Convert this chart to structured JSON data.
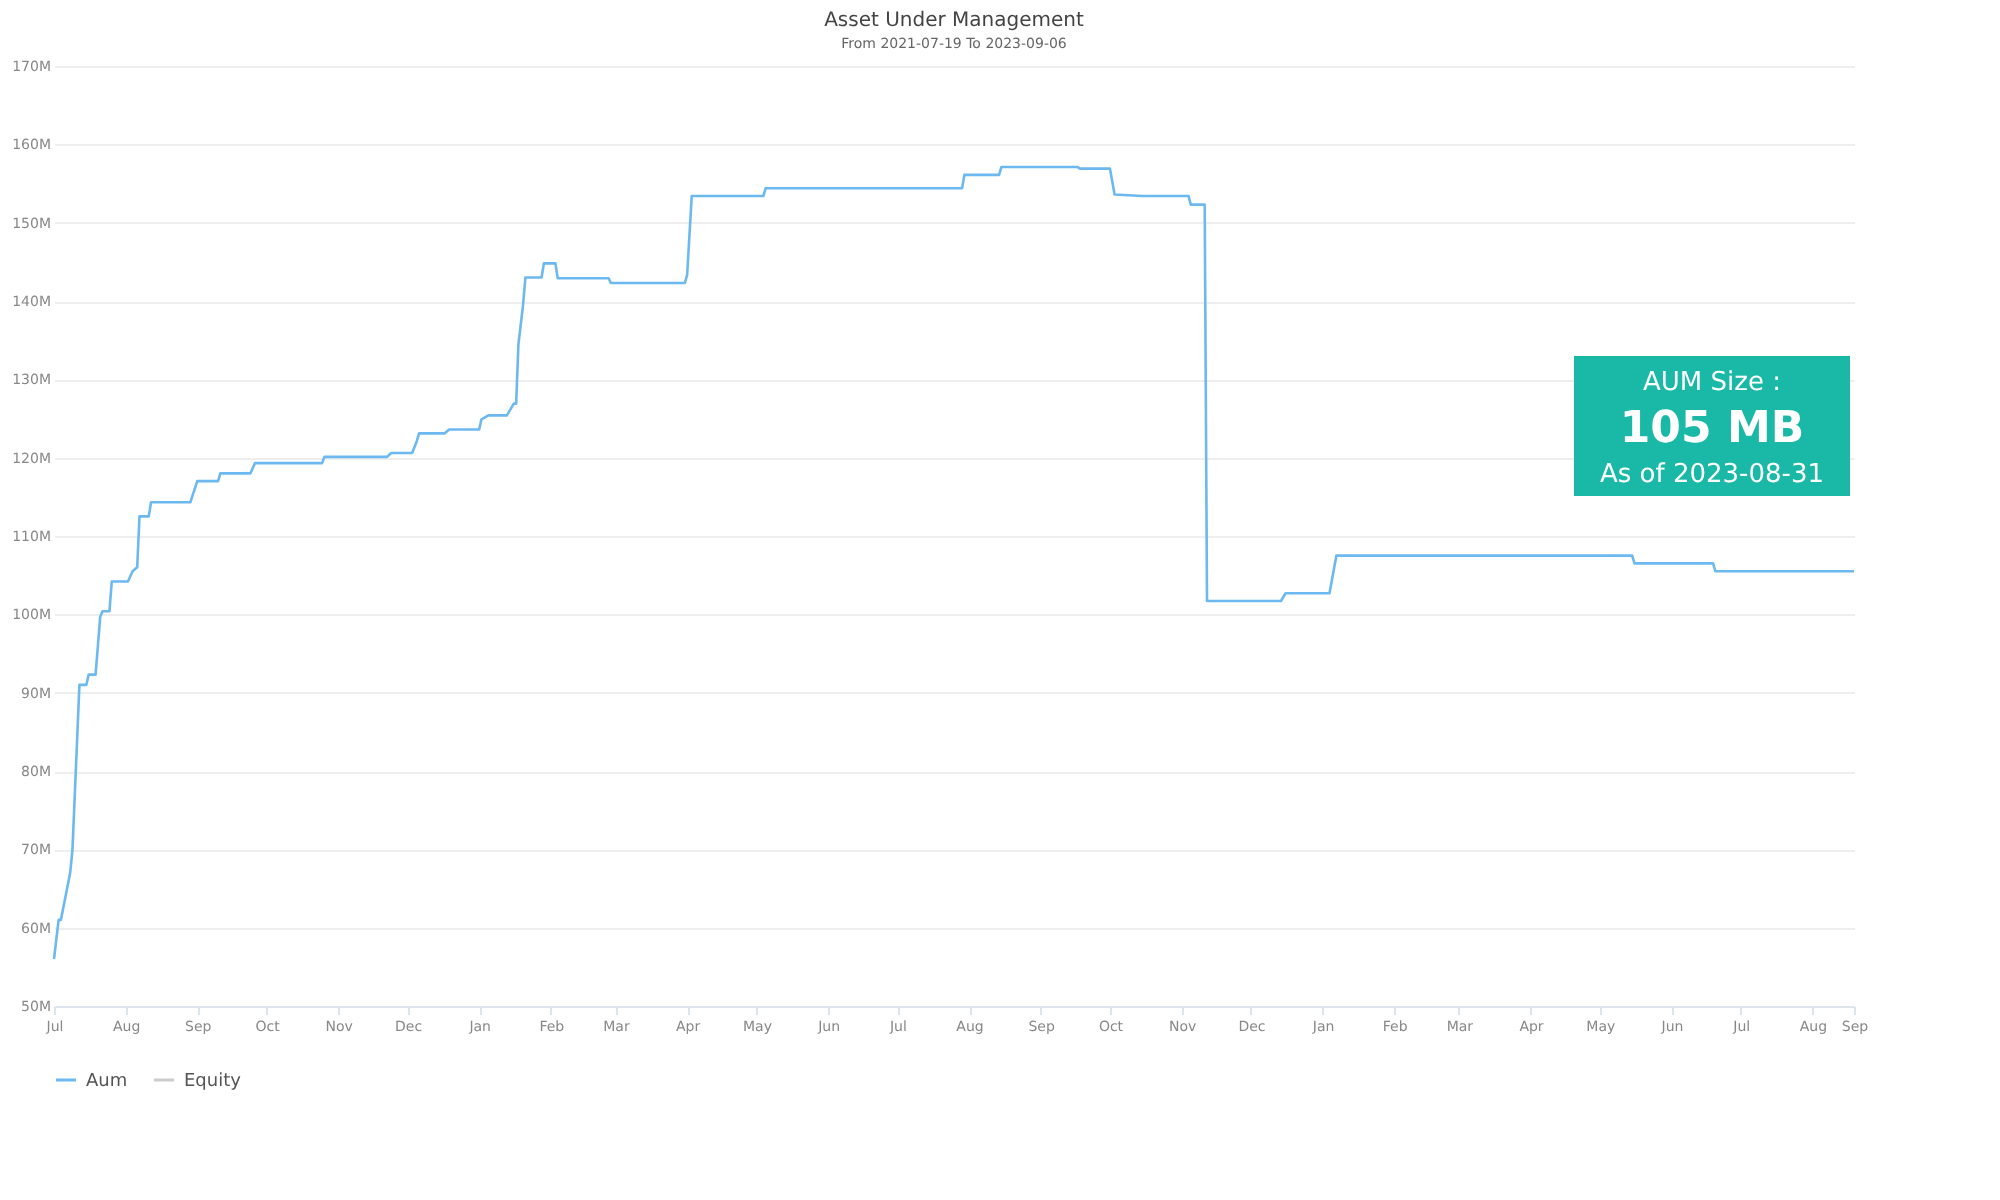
{
  "chart_data": {
    "type": "line",
    "title": "Asset Under Management",
    "subtitle": "From 2021-07-19 To 2023-09-06",
    "x": [
      "2021-07-19",
      "2021-07-21",
      "2021-07-22",
      "2021-07-26",
      "2021-07-27",
      "2021-07-30",
      "2021-08-02",
      "2021-08-03",
      "2021-08-06",
      "2021-08-08",
      "2021-08-09",
      "2021-08-12",
      "2021-08-13",
      "2021-08-20",
      "2021-08-22",
      "2021-08-24",
      "2021-08-25",
      "2021-08-29",
      "2021-08-30",
      "2021-09-16",
      "2021-09-19",
      "2021-09-28",
      "2021-09-29",
      "2021-10-12",
      "2021-10-14",
      "2021-11-12",
      "2021-11-13",
      "2021-12-10",
      "2021-12-12",
      "2021-12-21",
      "2021-12-23",
      "2021-12-24",
      "2022-01-04",
      "2022-01-06",
      "2022-01-19",
      "2022-01-20",
      "2022-01-23",
      "2022-01-31",
      "2022-02-03",
      "2022-02-04",
      "2022-02-05",
      "2022-02-07",
      "2022-02-08",
      "2022-02-15",
      "2022-02-16",
      "2022-02-21",
      "2022-02-22",
      "2022-03-16",
      "2022-03-17",
      "2022-04-18",
      "2022-04-19",
      "2022-04-21",
      "2022-05-22",
      "2022-05-23",
      "2022-08-16",
      "2022-08-17",
      "2022-09-01",
      "2022-09-02",
      "2022-10-05",
      "2022-10-06",
      "2022-10-19",
      "2022-10-21",
      "2022-11-02",
      "2022-11-22",
      "2022-11-23",
      "2022-11-29",
      "2022-11-30",
      "2023-01-01",
      "2023-01-03",
      "2023-01-22",
      "2023-01-25",
      "2023-06-02",
      "2023-06-03",
      "2023-07-07",
      "2023-07-08",
      "2023-09-06"
    ],
    "series": [
      {
        "name": "Aum",
        "color": "#6cb8f0",
        "values": [
          56,
          61,
          61,
          67,
          70,
          91,
          91,
          92.3,
          92.3,
          99.7,
          100.4,
          100.4,
          104.2,
          104.2,
          105.5,
          106,
          112.5,
          112.5,
          114.3,
          114.3,
          117,
          117,
          118,
          118,
          119.3,
          119.3,
          120.1,
          120.1,
          120.6,
          120.6,
          122.1,
          123.1,
          123.1,
          123.6,
          123.6,
          124.9,
          125.4,
          125.4,
          126.9,
          126.9,
          134.5,
          139.5,
          143,
          143,
          144.8,
          144.8,
          142.9,
          142.9,
          142.3,
          142.3,
          143.3,
          153.4,
          153.4,
          154.4,
          154.4,
          156.1,
          156.1,
          157.1,
          157.1,
          156.9,
          156.9,
          153.6,
          153.4,
          153.4,
          152.3,
          152.3,
          101.7,
          101.7,
          102.7,
          102.7,
          107.5,
          107.5,
          106.5,
          106.5,
          105.5,
          105.5
        ]
      },
      {
        "name": "Equity",
        "color": "#cccccc",
        "values": [
          null,
          null,
          null,
          null,
          null,
          null,
          null,
          null,
          null,
          null,
          null,
          null,
          null,
          null,
          null,
          null,
          null,
          null,
          null,
          null,
          null,
          null,
          null,
          null,
          null,
          null,
          null,
          null,
          null,
          null,
          null,
          null,
          null,
          null,
          null,
          null,
          null,
          null,
          null,
          null,
          null,
          null,
          null,
          null,
          null,
          null,
          null,
          null,
          null,
          null,
          null,
          null,
          null,
          null,
          null,
          null,
          null,
          null,
          null,
          null,
          null,
          null,
          null,
          null,
          null,
          null,
          null,
          null,
          null,
          null,
          null,
          null,
          null,
          null,
          null,
          null
        ]
      }
    ],
    "xlim": [
      "2021-07-19",
      "2023-09-06"
    ],
    "xticks": [
      {
        "value": "2021-07-19",
        "label": "Jul"
      },
      {
        "value": "2021-08-19",
        "label": "Aug"
      },
      {
        "value": "2021-09-19",
        "label": "Sep"
      },
      {
        "value": "2021-10-19",
        "label": "Oct"
      },
      {
        "value": "2021-11-19",
        "label": "Nov"
      },
      {
        "value": "2021-12-19",
        "label": "Dec"
      },
      {
        "value": "2022-01-19",
        "label": "Jan"
      },
      {
        "value": "2022-02-19",
        "label": "Feb"
      },
      {
        "value": "2022-03-19",
        "label": "Mar"
      },
      {
        "value": "2022-04-19",
        "label": "Apr"
      },
      {
        "value": "2022-05-19",
        "label": "May"
      },
      {
        "value": "2022-06-19",
        "label": "Jun"
      },
      {
        "value": "2022-07-19",
        "label": "Jul"
      },
      {
        "value": "2022-08-19",
        "label": "Aug"
      },
      {
        "value": "2022-09-19",
        "label": "Sep"
      },
      {
        "value": "2022-10-19",
        "label": "Oct"
      },
      {
        "value": "2022-11-19",
        "label": "Nov"
      },
      {
        "value": "2022-12-19",
        "label": "Dec"
      },
      {
        "value": "2023-01-19",
        "label": "Jan"
      },
      {
        "value": "2023-02-19",
        "label": "Feb"
      },
      {
        "value": "2023-03-19",
        "label": "Mar"
      },
      {
        "value": "2023-04-19",
        "label": "Apr"
      },
      {
        "value": "2023-05-19",
        "label": "May"
      },
      {
        "value": "2023-06-19",
        "label": "Jun"
      },
      {
        "value": "2023-07-19",
        "label": "Jul"
      },
      {
        "value": "2023-08-19",
        "label": "Aug"
      },
      {
        "value": "2023-09-06",
        "label": "Sep"
      }
    ],
    "ylim": [
      50,
      170
    ],
    "yticks": [
      {
        "value": 50,
        "label": "50M"
      },
      {
        "value": 60,
        "label": "60M"
      },
      {
        "value": 70,
        "label": "70M"
      },
      {
        "value": 80,
        "label": "80M"
      },
      {
        "value": 90,
        "label": "90M"
      },
      {
        "value": 100,
        "label": "100M"
      },
      {
        "value": 110,
        "label": "110M"
      },
      {
        "value": 120,
        "label": "120M"
      },
      {
        "value": 130,
        "label": "130M"
      },
      {
        "value": 140,
        "label": "140M"
      },
      {
        "value": 150,
        "label": "150M"
      },
      {
        "value": 160,
        "label": "160M"
      },
      {
        "value": 170,
        "label": "170M"
      }
    ],
    "grid": "y",
    "legend": "bottom",
    "annotations": [
      "AUM Size :",
      "105 MB",
      "As of 2023-08-31"
    ]
  }
}
